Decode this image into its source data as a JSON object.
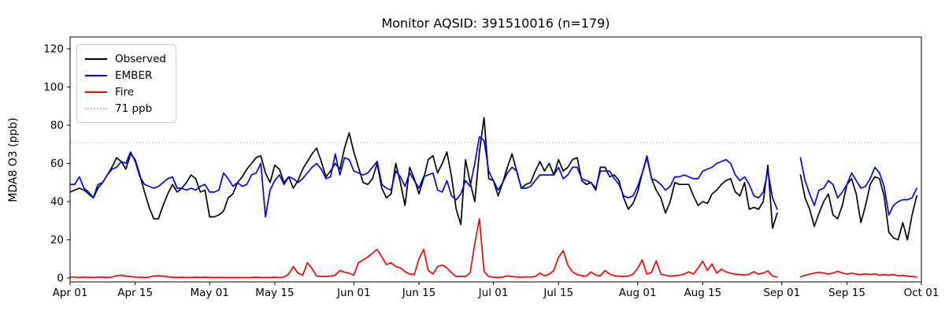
{
  "figure": {
    "title": "Monitor AQSID: 391510016 (n=179)"
  },
  "axes": {
    "ylabel": "MDA8 O3 (ppb)",
    "yticks": [
      0,
      20,
      40,
      60,
      80,
      100,
      120
    ],
    "ylim": [
      -2.1,
      126.2
    ],
    "total_days": 183,
    "xticks": [
      {
        "label": "Apr 01",
        "day": 0
      },
      {
        "label": "Apr 15",
        "day": 14
      },
      {
        "label": "May 01",
        "day": 30
      },
      {
        "label": "May 15",
        "day": 44
      },
      {
        "label": "Jun 01",
        "day": 61
      },
      {
        "label": "Jun 15",
        "day": 75
      },
      {
        "label": "Jul 01",
        "day": 91
      },
      {
        "label": "Jul 15",
        "day": 105
      },
      {
        "label": "Aug 01",
        "day": 122
      },
      {
        "label": "Aug 15",
        "day": 136
      },
      {
        "label": "Sep 01",
        "day": 153
      },
      {
        "label": "Sep 15",
        "day": 167
      },
      {
        "label": "Oct 01",
        "day": 183
      }
    ]
  },
  "legend": {
    "items": [
      {
        "label": "Observed",
        "color": "#000000",
        "style": "solid"
      },
      {
        "label": "EMBER",
        "color": "#0000ff",
        "style": "solid"
      },
      {
        "label": "Fire",
        "color": "#ff0000",
        "style": "solid"
      },
      {
        "label": "71 ppb",
        "color": "#c8c8c8",
        "style": "dotted"
      }
    ]
  },
  "chart_data": {
    "type": "line",
    "title": "Monitor AQSID: 391510016 (n=179)",
    "xlabel": "",
    "ylabel": "MDA8 O3 (ppb)",
    "x_unit": "day",
    "x_start": "Apr 01",
    "x_end": "Sep 30",
    "note_gap_days": "Sep 01 - Sep 04 missing (n=179 of 183 days)",
    "threshold": {
      "value": 71,
      "label": "71 ppb",
      "color": "#c8c8c8",
      "style": "dotted"
    },
    "series": [
      {
        "name": "Observed",
        "color": "#000000",
        "values": [
          45,
          46,
          47,
          46,
          44,
          42,
          47,
          50,
          54,
          58,
          63,
          61,
          57,
          65,
          62,
          54,
          45,
          37,
          31,
          31,
          38,
          44,
          49,
          45,
          47,
          50,
          54,
          52,
          45,
          46,
          32,
          32,
          33,
          35,
          42,
          44,
          50,
          53,
          57,
          60,
          63,
          64,
          55,
          50,
          59,
          57,
          50,
          53,
          47,
          51,
          57,
          61,
          65,
          68,
          61,
          53,
          56,
          60,
          57,
          68,
          76,
          66,
          58,
          50,
          49,
          52,
          60,
          47,
          42,
          44,
          60,
          50,
          38,
          58,
          52,
          44,
          52,
          62,
          64,
          55,
          60,
          66,
          53,
          36,
          28,
          62,
          50,
          40,
          66,
          84,
          52,
          51,
          43,
          50,
          58,
          65,
          56,
          47,
          49,
          50,
          56,
          61,
          56,
          60,
          54,
          62,
          56,
          58,
          62,
          63,
          51,
          49,
          50,
          46,
          58,
          58,
          53,
          54,
          51,
          42,
          36,
          39,
          45,
          55,
          63,
          52,
          46,
          42,
          34,
          40,
          50,
          49,
          49,
          49,
          43,
          38,
          40,
          39,
          44,
          46,
          49,
          51,
          52,
          45,
          43,
          50,
          36,
          37,
          36,
          40,
          59,
          26,
          34,
          null,
          null,
          null,
          null,
          54,
          42,
          36,
          27,
          34,
          40,
          44,
          33,
          31,
          38,
          49,
          52,
          44,
          29,
          38,
          49,
          53,
          52,
          43,
          24,
          21,
          20,
          29,
          20,
          33,
          43
        ]
      },
      {
        "name": "EMBER",
        "color": "#0000ff",
        "values": [
          49,
          49,
          53,
          47,
          45,
          42,
          49,
          50,
          54,
          57,
          58,
          61,
          60,
          66,
          61,
          53,
          49,
          48,
          47,
          48,
          50,
          52,
          53,
          47,
          47,
          46,
          47,
          46,
          48,
          49,
          45,
          45,
          46,
          55,
          52,
          48,
          50,
          48,
          49,
          54,
          55,
          60,
          32,
          46,
          51,
          54,
          49,
          53,
          52,
          50,
          52,
          55,
          58,
          60,
          57,
          52,
          53,
          65,
          54,
          63,
          62,
          56,
          55,
          54,
          55,
          58,
          61,
          49,
          47,
          46,
          56,
          53,
          48,
          55,
          51,
          47,
          53,
          54,
          55,
          46,
          45,
          51,
          43,
          41,
          44,
          51,
          48,
          60,
          74,
          72,
          56,
          51,
          46,
          50,
          55,
          58,
          56,
          47,
          47,
          48,
          51,
          54,
          54,
          54,
          54,
          58,
          52,
          54,
          58,
          58,
          52,
          51,
          50,
          47,
          56,
          56,
          56,
          52,
          49,
          43,
          42,
          43,
          48,
          55,
          64,
          52,
          51,
          49,
          46,
          48,
          53,
          53,
          54,
          53,
          52,
          52,
          56,
          57,
          58,
          60,
          61,
          62,
          60,
          54,
          51,
          53,
          49,
          43,
          42,
          45,
          56,
          42,
          36,
          null,
          null,
          null,
          null,
          63,
          51,
          44,
          38,
          46,
          47,
          51,
          49,
          42,
          45,
          49,
          55,
          51,
          47,
          48,
          52,
          58,
          55,
          48,
          33,
          38,
          40,
          41,
          41,
          42,
          47
        ]
      },
      {
        "name": "Fire",
        "color": "#ff0000",
        "values": [
          0.5,
          0.5,
          0.3,
          0.5,
          0.4,
          0.3,
          0.5,
          0.4,
          0.3,
          0.5,
          1.2,
          1.5,
          1.0,
          0.8,
          0.5,
          0.4,
          0.3,
          0.5,
          1.0,
          1.2,
          1.0,
          0.6,
          0.4,
          0.3,
          0.4,
          0.3,
          0.3,
          0.4,
          0.3,
          0.4,
          0.3,
          0.2,
          0.3,
          0.3,
          0.2,
          0.3,
          0.2,
          0.3,
          0.2,
          0.3,
          0.4,
          0.3,
          0.3,
          0.3,
          0.4,
          0.3,
          0.5,
          2.0,
          6.0,
          2.5,
          1.5,
          8.0,
          5.0,
          1.0,
          0.8,
          0.8,
          1.0,
          1.5,
          4.0,
          3.0,
          2.5,
          1.5,
          8.0,
          9.5,
          11.0,
          13.0,
          15.0,
          11.0,
          7.0,
          8.0,
          6.0,
          5.3,
          3.4,
          2.1,
          1.8,
          10.0,
          15.0,
          4.0,
          2.1,
          6.0,
          6.8,
          5.3,
          2.7,
          0.8,
          0.8,
          0.8,
          2.7,
          18.0,
          31.0,
          3.4,
          0.8,
          0.4,
          0.3,
          0.5,
          1.1,
          0.8,
          0.5,
          0.4,
          0.6,
          0.5,
          0.8,
          2.5,
          1.1,
          2.0,
          3.9,
          10.8,
          14.3,
          6.7,
          3.2,
          1.8,
          1.2,
          1.0,
          3.2,
          1.5,
          1.2,
          3.9,
          2.0,
          1.2,
          1.0,
          0.8,
          1.0,
          2.0,
          5.0,
          9.5,
          2.0,
          3.0,
          9.0,
          2.0,
          1.5,
          1.0,
          1.2,
          1.5,
          2.0,
          3.2,
          2.0,
          5.3,
          8.8,
          4.0,
          7.4,
          2.5,
          4.6,
          3.2,
          2.5,
          2.0,
          1.8,
          1.5,
          2.0,
          3.3,
          2.0,
          2.6,
          3.7,
          1.0,
          0.5,
          null,
          null,
          null,
          null,
          0.5,
          1.5,
          2.0,
          2.6,
          3.0,
          2.6,
          2.0,
          2.6,
          3.5,
          2.6,
          2.0,
          2.5,
          2.0,
          1.8,
          2.2,
          1.8,
          2.2,
          1.4,
          1.8,
          1.4,
          1.8,
          1.2,
          1.4,
          1.0,
          0.8,
          0.5
        ]
      }
    ]
  }
}
